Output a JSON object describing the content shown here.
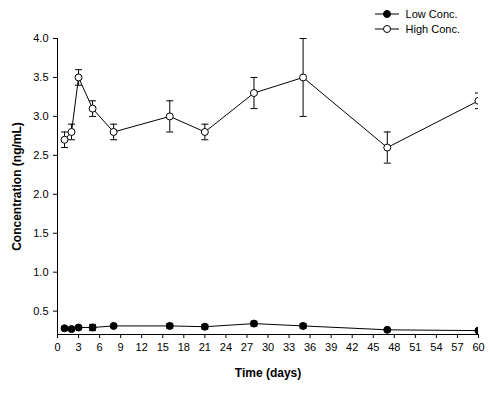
{
  "chart_data": {
    "type": "line",
    "x_label": "Time (days)",
    "y_label": "Concentration (ng/mL)",
    "x": [
      1,
      2,
      3,
      5,
      8,
      16,
      21,
      28,
      35,
      47,
      60
    ],
    "series": [
      {
        "name": "Low Conc.",
        "color": "#000000",
        "marker": "circle",
        "values": [
          0.28,
          0.27,
          0.29,
          0.29,
          0.31,
          0.31,
          0.3,
          0.34,
          0.31,
          0.26,
          0.25
        ],
        "errors": [
          0.02,
          0.01,
          0.02,
          0.04,
          0.02,
          0.03,
          0.03,
          0.03,
          0.03,
          0.01,
          0.02
        ]
      },
      {
        "name": "High Conc.",
        "color": "#000000",
        "marker": "open_circle",
        "values": [
          2.7,
          2.8,
          3.5,
          3.1,
          2.8,
          3.0,
          2.8,
          3.3,
          3.5,
          2.6,
          3.2
        ],
        "errors": [
          0.1,
          0.1,
          0.1,
          0.1,
          0.1,
          0.2,
          0.1,
          0.2,
          0.5,
          0.2,
          0.1
        ]
      }
    ],
    "xlim": [
      0,
      60
    ],
    "xticks": [
      0,
      3,
      6,
      9,
      12,
      15,
      18,
      21,
      24,
      27,
      30,
      33,
      36,
      39,
      42,
      45,
      48,
      51,
      54,
      57,
      60
    ],
    "ylim": [
      0.2,
      4.0
    ],
    "yticks": [
      0.5,
      {
        "value": 1,
        "label": "1.0"
      },
      1.5,
      {
        "value": 2,
        "label": "2.0"
      },
      2.5,
      {
        "value": 3,
        "label": "3.0"
      },
      3.5,
      {
        "value": 4,
        "label": "4.0"
      }
    ],
    "legend": "top-right",
    "grid": false
  }
}
